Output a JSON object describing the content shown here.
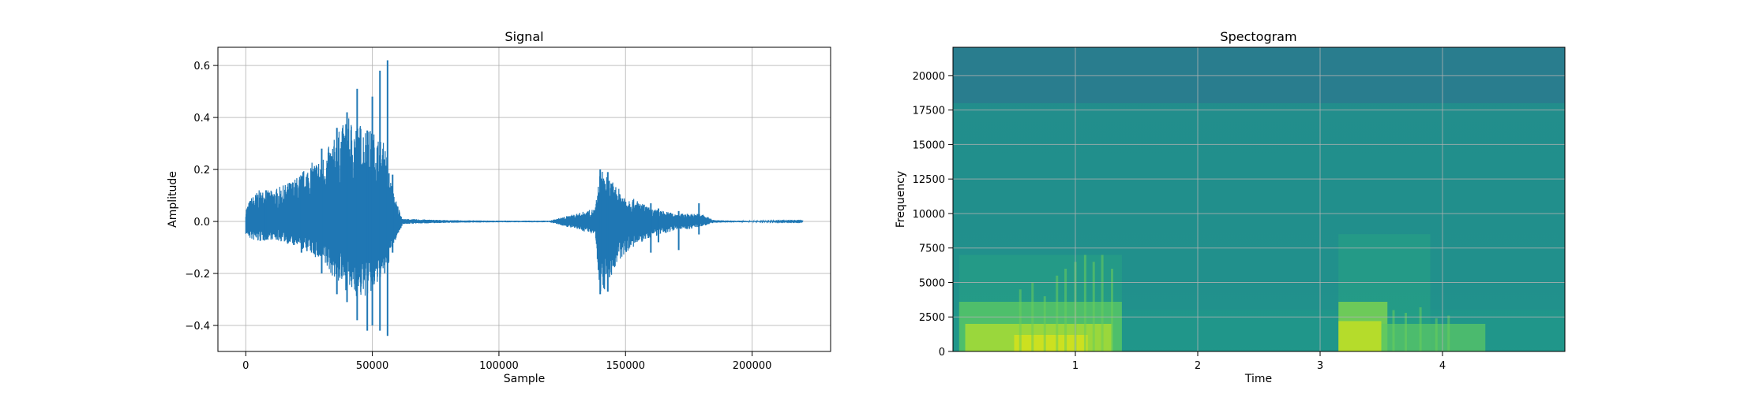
{
  "chart_data": [
    {
      "type": "line",
      "title": "Signal",
      "xlabel": "Sample",
      "ylabel": "Amplitude",
      "xlim": [
        -11000,
        231000
      ],
      "ylim": [
        -0.5,
        0.67
      ],
      "xticks": [
        0,
        50000,
        100000,
        150000,
        200000
      ],
      "xtick_labels": [
        "0",
        "50000",
        "100000",
        "150000",
        "200000"
      ],
      "yticks": [
        -0.4,
        -0.2,
        0.0,
        0.2,
        0.4,
        0.6
      ],
      "ytick_labels": [
        "−0.4",
        "−0.2",
        "0.0",
        "0.2",
        "0.4",
        "0.6"
      ],
      "grid": true,
      "series_color": "#1f77b4",
      "envelope": {
        "x": [
          0,
          2000,
          5000,
          10000,
          15000,
          20000,
          25000,
          30000,
          35000,
          40000,
          45000,
          50000,
          55000,
          58000,
          62000,
          80000,
          100000,
          120000,
          138000,
          140000,
          142000,
          145000,
          150000,
          155000,
          160000,
          165000,
          170000,
          175000,
          180000,
          185000,
          200000,
          220000
        ],
        "upper": [
          0.05,
          0.09,
          0.12,
          0.12,
          0.14,
          0.17,
          0.22,
          0.25,
          0.32,
          0.4,
          0.38,
          0.35,
          0.3,
          0.12,
          0.01,
          0.005,
          0.003,
          0.003,
          0.05,
          0.2,
          0.19,
          0.15,
          0.1,
          0.08,
          0.05,
          0.04,
          0.03,
          0.03,
          0.03,
          0.005,
          0.002,
          0.001
        ],
        "lower": [
          -0.05,
          -0.07,
          -0.08,
          -0.07,
          -0.08,
          -0.1,
          -0.12,
          -0.16,
          -0.22,
          -0.27,
          -0.3,
          -0.28,
          -0.22,
          -0.1,
          -0.01,
          -0.005,
          -0.003,
          -0.003,
          -0.05,
          -0.28,
          -0.26,
          -0.2,
          -0.12,
          -0.09,
          -0.06,
          -0.05,
          -0.03,
          -0.03,
          -0.02,
          -0.005,
          -0.002,
          -0.001
        ]
      },
      "spikes": [
        {
          "x": 8000,
          "top": 0.12,
          "bottom": -0.07
        },
        {
          "x": 22000,
          "top": 0.16,
          "bottom": -0.12
        },
        {
          "x": 30000,
          "top": 0.28,
          "bottom": -0.2
        },
        {
          "x": 36000,
          "top": 0.36,
          "bottom": -0.28
        },
        {
          "x": 40000,
          "top": 0.42,
          "bottom": -0.31
        },
        {
          "x": 44000,
          "top": 0.51,
          "bottom": -0.38
        },
        {
          "x": 48000,
          "top": 0.35,
          "bottom": -0.42
        },
        {
          "x": 50000,
          "top": 0.48,
          "bottom": -0.4
        },
        {
          "x": 53000,
          "top": 0.58,
          "bottom": -0.42
        },
        {
          "x": 56000,
          "top": 0.62,
          "bottom": -0.44
        },
        {
          "x": 58000,
          "top": 0.18,
          "bottom": -0.12
        },
        {
          "x": 140000,
          "top": 0.2,
          "bottom": -0.28
        },
        {
          "x": 143000,
          "top": 0.19,
          "bottom": -0.27
        },
        {
          "x": 160000,
          "top": 0.07,
          "bottom": -0.12
        },
        {
          "x": 163000,
          "top": 0.05,
          "bottom": -0.08
        },
        {
          "x": 171000,
          "top": 0.04,
          "bottom": -0.11
        },
        {
          "x": 179000,
          "top": 0.07,
          "bottom": -0.05
        }
      ]
    },
    {
      "type": "heatmap",
      "title": "Spectogram",
      "xlabel": "Time",
      "ylabel": "Frequency",
      "xlim": [
        0,
        5
      ],
      "ylim": [
        0,
        22050
      ],
      "xticks": [
        1,
        2,
        3,
        4
      ],
      "xtick_labels": [
        "1",
        "2",
        "3",
        "4"
      ],
      "yticks": [
        0,
        2500,
        5000,
        7500,
        10000,
        12500,
        15000,
        17500,
        20000
      ],
      "ytick_labels": [
        "0",
        "2500",
        "5000",
        "7500",
        "10000",
        "12500",
        "15000",
        "17500",
        "20000"
      ],
      "grid": true,
      "colormap": "viridis",
      "background_color": "#218f8c",
      "bands": [
        {
          "t0": 0,
          "t1": 5,
          "f0": 18000,
          "f1": 22050,
          "color": "#2a7a8e",
          "opacity": 0.85
        },
        {
          "t0": 0,
          "t1": 5,
          "f0": 0,
          "f1": 3000,
          "color": "#1f9a8a",
          "opacity": 0.6
        },
        {
          "t0": 0.05,
          "t1": 1.38,
          "f0": 0,
          "f1": 7000,
          "color": "#2ab07f",
          "opacity": 0.35
        },
        {
          "t0": 0.05,
          "t1": 1.38,
          "f0": 0,
          "f1": 3600,
          "color": "#5ec962",
          "opacity": 0.75
        },
        {
          "t0": 0.1,
          "t1": 1.3,
          "f0": 0,
          "f1": 2000,
          "color": "#a8db34",
          "opacity": 0.85
        },
        {
          "t0": 0.5,
          "t1": 1.1,
          "f0": 0,
          "f1": 1200,
          "color": "#d8e219",
          "opacity": 0.8
        },
        {
          "t0": 3.15,
          "t1": 3.9,
          "f0": 0,
          "f1": 8500,
          "color": "#2ab07f",
          "opacity": 0.35
        },
        {
          "t0": 3.15,
          "t1": 3.55,
          "f0": 0,
          "f1": 3600,
          "color": "#7ad151",
          "opacity": 0.85
        },
        {
          "t0": 3.15,
          "t1": 3.5,
          "f0": 0,
          "f1": 2200,
          "color": "#c2df23",
          "opacity": 0.85
        },
        {
          "t0": 3.5,
          "t1": 4.35,
          "f0": 0,
          "f1": 2000,
          "color": "#5ec962",
          "opacity": 0.7
        }
      ],
      "streaks": [
        {
          "t": 0.55,
          "f1": 4500
        },
        {
          "t": 0.65,
          "f1": 5000
        },
        {
          "t": 0.75,
          "f1": 4000
        },
        {
          "t": 0.85,
          "f1": 5500
        },
        {
          "t": 0.92,
          "f1": 6000
        },
        {
          "t": 1.0,
          "f1": 6500
        },
        {
          "t": 1.08,
          "f1": 7000
        },
        {
          "t": 1.15,
          "f1": 6500
        },
        {
          "t": 1.22,
          "f1": 7000
        },
        {
          "t": 1.3,
          "f1": 6000
        },
        {
          "t": 3.6,
          "f1": 3000
        },
        {
          "t": 3.7,
          "f1": 2800
        },
        {
          "t": 3.82,
          "f1": 3200
        },
        {
          "t": 3.95,
          "f1": 2400
        },
        {
          "t": 4.05,
          "f1": 2600
        }
      ]
    }
  ]
}
